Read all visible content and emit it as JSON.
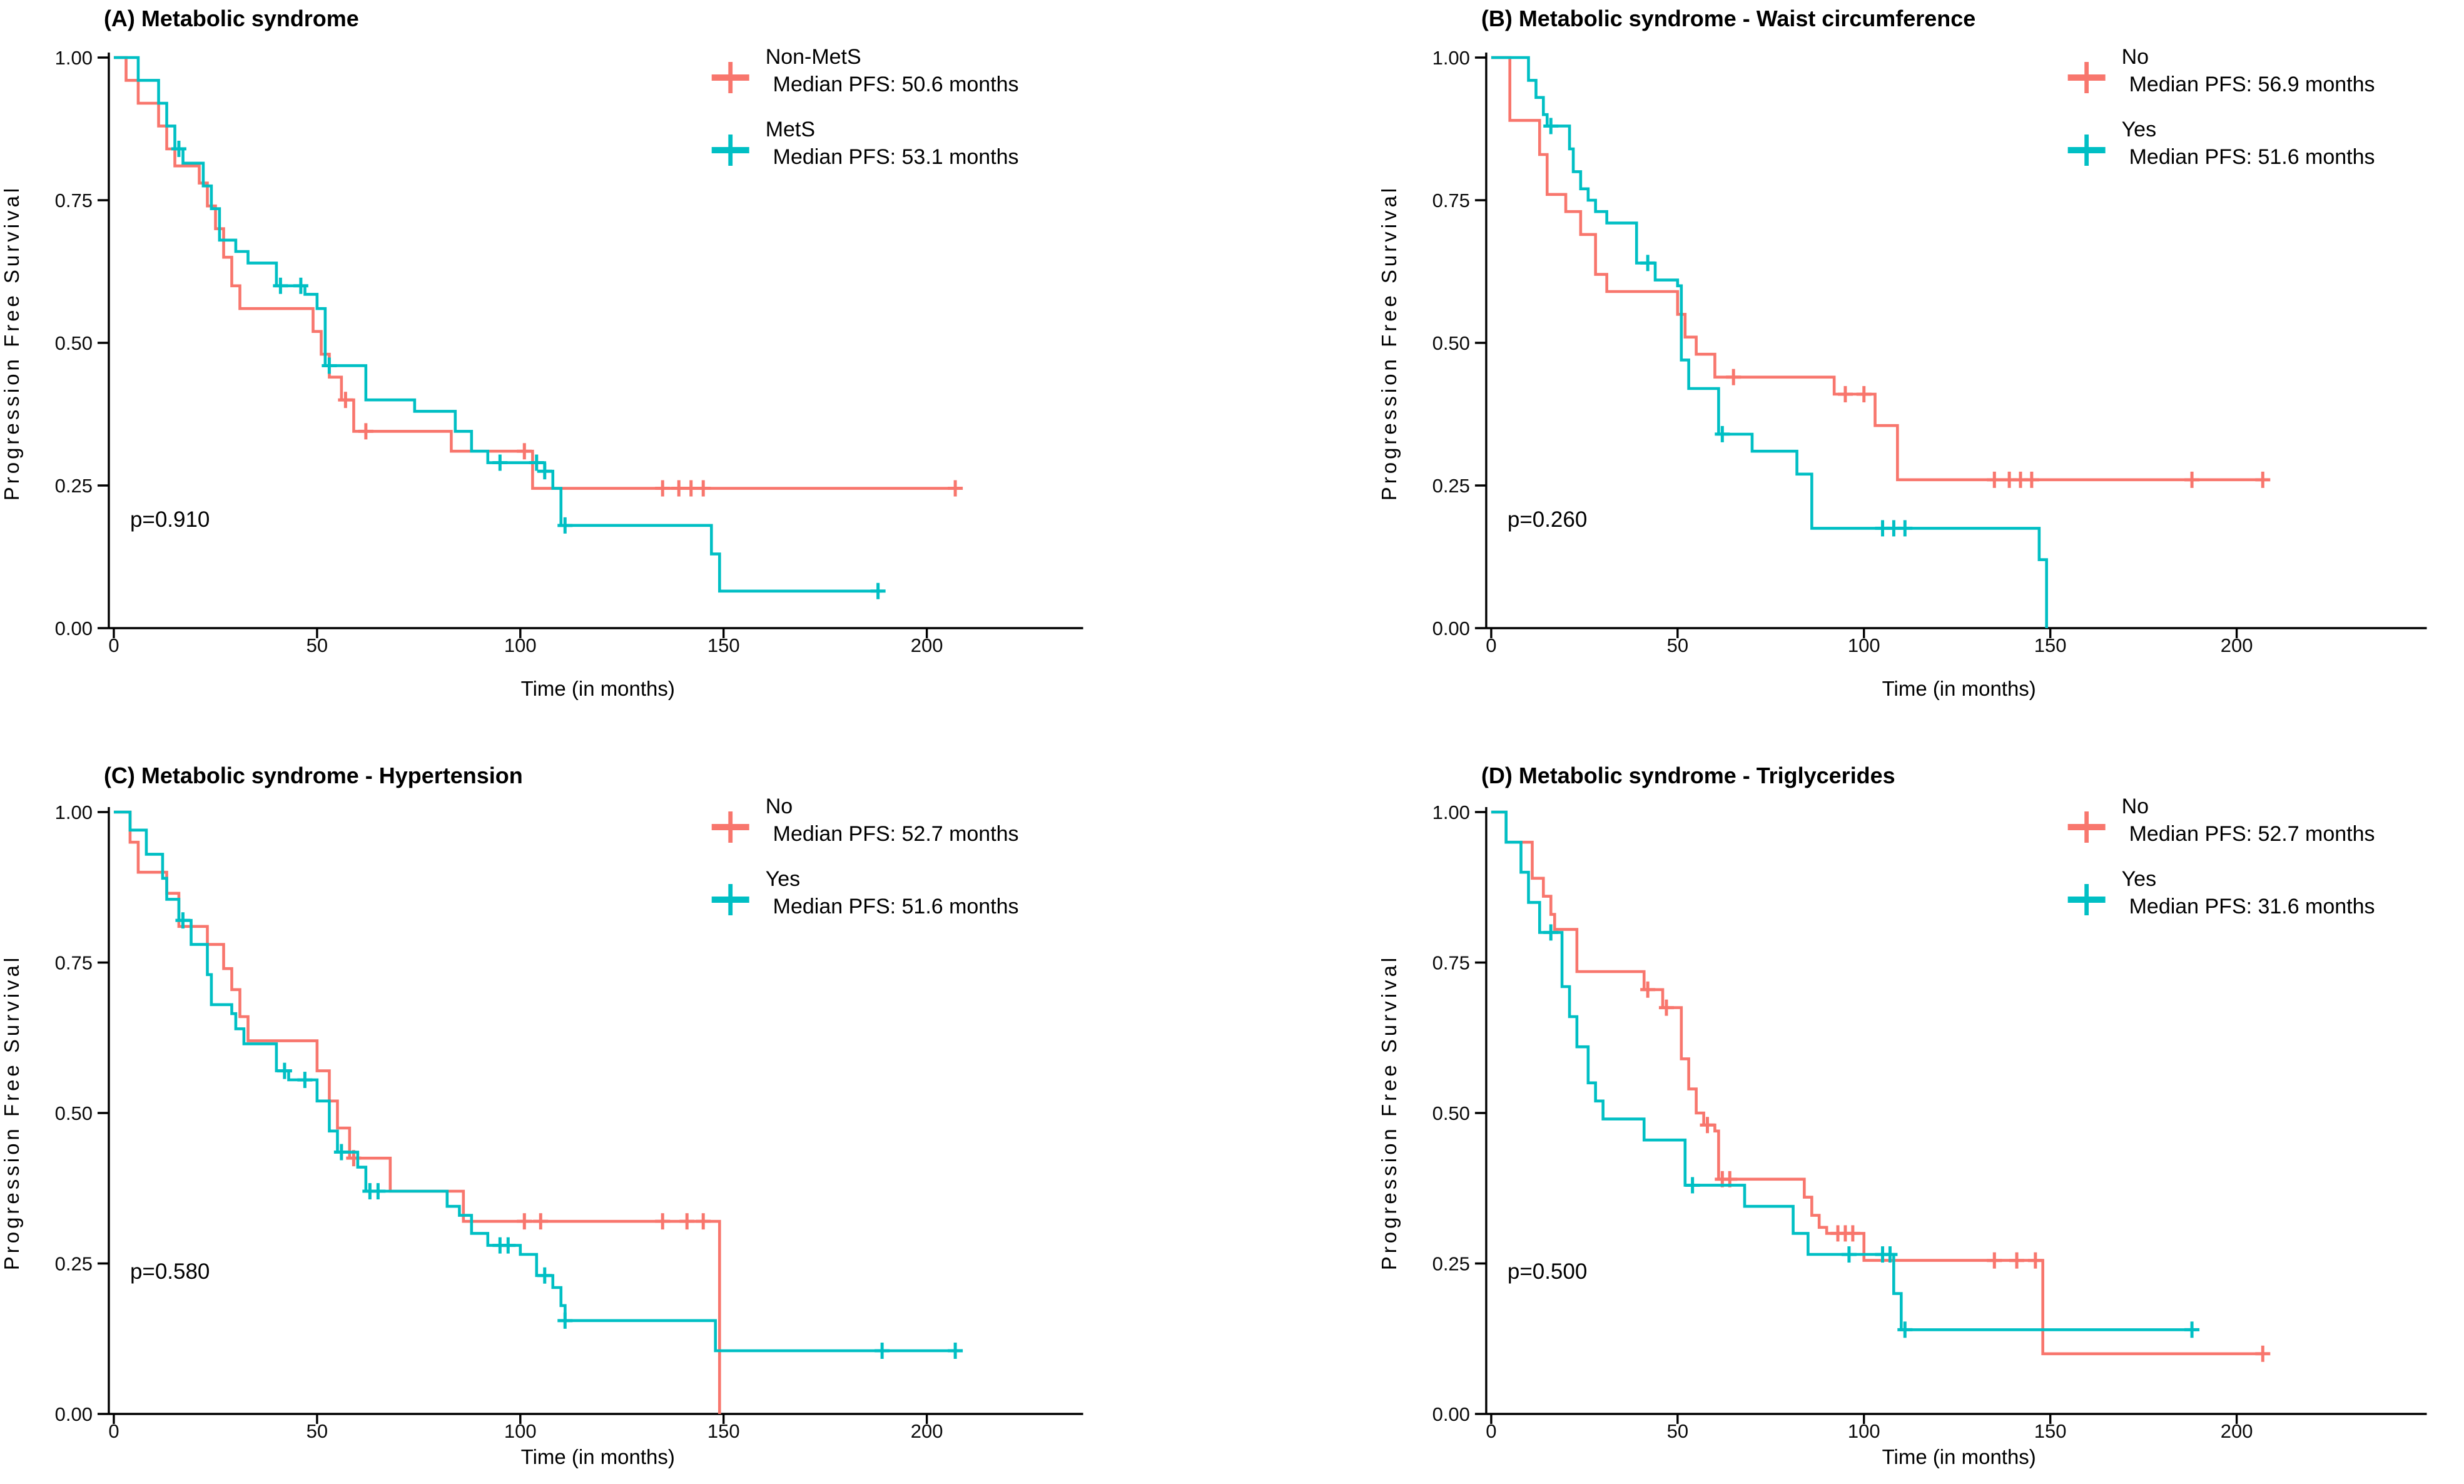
{
  "figure": {
    "background": "#ffffff",
    "layout": "2x2",
    "group_colors": {
      "red": "#F8766D",
      "teal": "#00BFC4"
    }
  },
  "chart_data": [
    {
      "type": "line",
      "subtype": "kaplan-meier",
      "panel": "A",
      "title": "(A) Metabolic syndrome",
      "p_value": "p=0.910",
      "xlabel": "Time (in months)",
      "ylabel": "Progression Free Survival",
      "xlim": [
        0,
        235
      ],
      "ylim": [
        0,
        1
      ],
      "x_ticks": [
        0,
        50,
        100,
        150,
        200
      ],
      "y_ticks": [
        "0.00",
        "0.25",
        "0.50",
        "0.75",
        "1.00"
      ],
      "grid": false,
      "legend_position": "top-right",
      "series": [
        {
          "name": "Non-MetS",
          "median_label": "Median PFS: 50.6 months",
          "color": "#F8766D",
          "steps": [
            [
              0,
              1.0
            ],
            [
              3,
              0.96
            ],
            [
              6,
              0.92
            ],
            [
              11,
              0.88
            ],
            [
              13,
              0.84
            ],
            [
              15,
              0.81
            ],
            [
              21,
              0.78
            ],
            [
              23,
              0.74
            ],
            [
              25,
              0.7
            ],
            [
              27,
              0.65
            ],
            [
              29,
              0.6
            ],
            [
              31,
              0.56
            ],
            [
              49,
              0.52
            ],
            [
              51,
              0.48
            ],
            [
              53,
              0.44
            ],
            [
              56,
              0.4
            ],
            [
              59,
              0.345
            ],
            [
              83,
              0.31
            ],
            [
              103,
              0.245
            ],
            [
              207,
              0.245
            ]
          ],
          "censor_times": [
            57,
            62,
            101,
            135,
            139,
            142,
            145,
            207
          ]
        },
        {
          "name": "MetS",
          "median_label": "Median PFS: 53.1 months",
          "color": "#00BFC4",
          "steps": [
            [
              0,
              1.0
            ],
            [
              6,
              0.96
            ],
            [
              11,
              0.92
            ],
            [
              13,
              0.88
            ],
            [
              15,
              0.84
            ],
            [
              17,
              0.815
            ],
            [
              22,
              0.775
            ],
            [
              24,
              0.735
            ],
            [
              26,
              0.68
            ],
            [
              30,
              0.66
            ],
            [
              33,
              0.64
            ],
            [
              40,
              0.6
            ],
            [
              47,
              0.585
            ],
            [
              50,
              0.56
            ],
            [
              52,
              0.46
            ],
            [
              62,
              0.4
            ],
            [
              74,
              0.38
            ],
            [
              84,
              0.345
            ],
            [
              88,
              0.31
            ],
            [
              92,
              0.29
            ],
            [
              106,
              0.275
            ],
            [
              108,
              0.245
            ],
            [
              110,
              0.18
            ],
            [
              147,
              0.13
            ],
            [
              149,
              0.065
            ],
            [
              189,
              0.065
            ]
          ],
          "censor_times": [
            16,
            41,
            46,
            53,
            95,
            104,
            106,
            111,
            188
          ]
        }
      ]
    },
    {
      "type": "line",
      "subtype": "kaplan-meier",
      "panel": "B",
      "title": "(B) Metabolic syndrome - Waist circumference",
      "p_value": "p=0.260",
      "xlabel": "Time (in months)",
      "ylabel": "Progression Free Survival",
      "xlim": [
        0,
        250
      ],
      "ylim": [
        0,
        1
      ],
      "x_ticks": [
        0,
        50,
        100,
        150,
        200
      ],
      "y_ticks": [
        "0.00",
        "0.25",
        "0.50",
        "0.75",
        "1.00"
      ],
      "grid": false,
      "legend_position": "top-right",
      "series": [
        {
          "name": "No",
          "median_label": "Median PFS: 56.9 months",
          "color": "#F8766D",
          "steps": [
            [
              0,
              1.0
            ],
            [
              5,
              0.89
            ],
            [
              13,
              0.83
            ],
            [
              15,
              0.76
            ],
            [
              20,
              0.73
            ],
            [
              24,
              0.69
            ],
            [
              28,
              0.62
            ],
            [
              31,
              0.59
            ],
            [
              50,
              0.55
            ],
            [
              52,
              0.51
            ],
            [
              55,
              0.48
            ],
            [
              60,
              0.44
            ],
            [
              92,
              0.41
            ],
            [
              103,
              0.355
            ],
            [
              109,
              0.26
            ],
            [
              207,
              0.26
            ]
          ],
          "censor_times": [
            65,
            95,
            100,
            135,
            139,
            142,
            145,
            188,
            207
          ]
        },
        {
          "name": "Yes",
          "median_label": "Median PFS: 51.6 months",
          "color": "#00BFC4",
          "steps": [
            [
              0,
              1.0
            ],
            [
              10,
              0.96
            ],
            [
              12,
              0.93
            ],
            [
              14,
              0.9
            ],
            [
              15,
              0.88
            ],
            [
              21,
              0.84
            ],
            [
              22,
              0.8
            ],
            [
              24,
              0.77
            ],
            [
              26,
              0.75
            ],
            [
              28,
              0.73
            ],
            [
              31,
              0.71
            ],
            [
              39,
              0.64
            ],
            [
              44,
              0.61
            ],
            [
              50,
              0.6
            ],
            [
              51,
              0.47
            ],
            [
              53,
              0.42
            ],
            [
              61,
              0.34
            ],
            [
              70,
              0.31
            ],
            [
              82,
              0.27
            ],
            [
              86,
              0.175
            ],
            [
              147,
              0.12
            ],
            [
              149,
              0.0
            ]
          ],
          "censor_times": [
            16,
            42,
            62,
            105,
            108,
            111
          ]
        }
      ]
    },
    {
      "type": "line",
      "subtype": "kaplan-meier",
      "panel": "C",
      "title": "(C) Metabolic syndrome - Hypertension",
      "p_value": "p=0.580",
      "xlabel": "Time (in months)",
      "ylabel": "Progression Free Survival",
      "xlim": [
        0,
        235
      ],
      "ylim": [
        0,
        1
      ],
      "x_ticks": [
        0,
        50,
        100,
        150,
        200
      ],
      "y_ticks": [
        "0.00",
        "0.25",
        "0.50",
        "0.75",
        "1.00"
      ],
      "grid": false,
      "legend_position": "top-right",
      "series": [
        {
          "name": "No",
          "median_label": "Median PFS: 52.7 months",
          "color": "#F8766D",
          "steps": [
            [
              0,
              1.0
            ],
            [
              4,
              0.95
            ],
            [
              6,
              0.9
            ],
            [
              13,
              0.865
            ],
            [
              16,
              0.81
            ],
            [
              23,
              0.78
            ],
            [
              27,
              0.74
            ],
            [
              29,
              0.705
            ],
            [
              31,
              0.66
            ],
            [
              33,
              0.62
            ],
            [
              50,
              0.57
            ],
            [
              53,
              0.52
            ],
            [
              55,
              0.475
            ],
            [
              58,
              0.425
            ],
            [
              68,
              0.37
            ],
            [
              86,
              0.32
            ],
            [
              148,
              0.32
            ],
            [
              149,
              0.0
            ]
          ],
          "censor_times": [
            59,
            101,
            105,
            135,
            141,
            145
          ]
        },
        {
          "name": "Yes",
          "median_label": "Median PFS: 51.6 months",
          "color": "#00BFC4",
          "steps": [
            [
              0,
              1.0
            ],
            [
              4,
              0.97
            ],
            [
              8,
              0.93
            ],
            [
              12,
              0.89
            ],
            [
              13,
              0.855
            ],
            [
              16,
              0.82
            ],
            [
              19,
              0.78
            ],
            [
              23,
              0.73
            ],
            [
              24,
              0.68
            ],
            [
              29,
              0.665
            ],
            [
              30,
              0.64
            ],
            [
              32,
              0.615
            ],
            [
              40,
              0.57
            ],
            [
              43,
              0.555
            ],
            [
              50,
              0.52
            ],
            [
              53,
              0.47
            ],
            [
              55,
              0.435
            ],
            [
              60,
              0.41
            ],
            [
              62,
              0.37
            ],
            [
              82,
              0.345
            ],
            [
              85,
              0.33
            ],
            [
              88,
              0.3
            ],
            [
              92,
              0.28
            ],
            [
              100,
              0.265
            ],
            [
              104,
              0.23
            ],
            [
              108,
              0.21
            ],
            [
              110,
              0.18
            ],
            [
              111,
              0.155
            ],
            [
              148,
              0.105
            ],
            [
              207,
              0.105
            ]
          ],
          "censor_times": [
            17,
            42,
            47,
            56,
            63,
            65,
            95,
            97,
            106,
            111,
            189,
            207
          ]
        }
      ]
    },
    {
      "type": "line",
      "subtype": "kaplan-meier",
      "panel": "D",
      "title": "(D) Metabolic syndrome - Triglycerides",
      "p_value": "p=0.500",
      "xlabel": "Time (in months)",
      "ylabel": "Progression Free Survival",
      "xlim": [
        0,
        250
      ],
      "ylim": [
        0,
        1
      ],
      "x_ticks": [
        0,
        50,
        100,
        150,
        200
      ],
      "y_ticks": [
        "0.00",
        "0.25",
        "0.50",
        "0.75",
        "1.00"
      ],
      "grid": false,
      "legend_position": "top-right",
      "series": [
        {
          "name": "No",
          "median_label": "Median PFS: 52.7 months",
          "color": "#F8766D",
          "steps": [
            [
              0,
              1.0
            ],
            [
              4,
              0.95
            ],
            [
              11,
              0.89
            ],
            [
              14,
              0.86
            ],
            [
              16,
              0.83
            ],
            [
              17,
              0.805
            ],
            [
              23,
              0.735
            ],
            [
              41,
              0.705
            ],
            [
              46,
              0.675
            ],
            [
              51,
              0.59
            ],
            [
              53,
              0.54
            ],
            [
              55,
              0.5
            ],
            [
              57,
              0.48
            ],
            [
              60,
              0.47
            ],
            [
              61,
              0.39
            ],
            [
              84,
              0.36
            ],
            [
              86,
              0.33
            ],
            [
              88,
              0.31
            ],
            [
              90,
              0.3
            ],
            [
              100,
              0.255
            ],
            [
              148,
              0.1
            ],
            [
              207,
              0.1
            ]
          ],
          "censor_times": [
            42,
            47,
            58,
            62,
            64,
            93,
            95,
            97,
            135,
            141,
            146,
            207
          ]
        },
        {
          "name": "Yes",
          "median_label": "Median PFS: 31.6 months",
          "color": "#00BFC4",
          "steps": [
            [
              0,
              1.0
            ],
            [
              4,
              0.95
            ],
            [
              8,
              0.9
            ],
            [
              10,
              0.85
            ],
            [
              13,
              0.8
            ],
            [
              19,
              0.71
            ],
            [
              21,
              0.66
            ],
            [
              23,
              0.61
            ],
            [
              26,
              0.55
            ],
            [
              28,
              0.52
            ],
            [
              30,
              0.49
            ],
            [
              41,
              0.455
            ],
            [
              52,
              0.38
            ],
            [
              68,
              0.345
            ],
            [
              81,
              0.3
            ],
            [
              85,
              0.265
            ],
            [
              108,
              0.2
            ],
            [
              110,
              0.14
            ],
            [
              189,
              0.14
            ]
          ],
          "censor_times": [
            16,
            54,
            96,
            105,
            107,
            111,
            188
          ]
        }
      ]
    }
  ]
}
